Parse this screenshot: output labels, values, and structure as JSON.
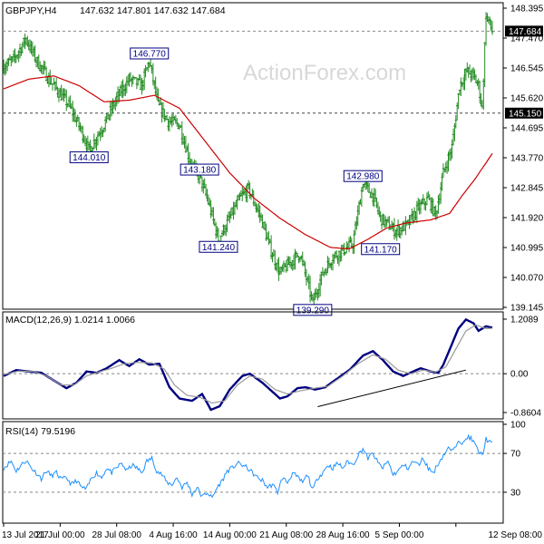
{
  "header": {
    "symbol": "GBPJPY,H4",
    "ohlc": "147.632 147.801 147.632 147.684"
  },
  "watermark": "ActionForex.com",
  "colors": {
    "candle": "#228b22",
    "ma": "#cc0000",
    "macd_main": "#000080",
    "macd_signal": "#9a9a9a",
    "rsi": "#1e90ff",
    "label_border": "#000080",
    "label_text": "#000080",
    "current_price_bg": "#000000",
    "current_price_fg": "#ffffff"
  },
  "chart_data": [
    {
      "type": "candlestick",
      "title": "GBPJPY,H4",
      "ylim": [
        139.145,
        148.395
      ],
      "y_ticks": [
        "148.395",
        "147.470",
        "146.545",
        "145.620",
        "144.695",
        "143.770",
        "142.845",
        "141.920",
        "140.995",
        "140.070",
        "139.145"
      ],
      "current_price": "147.684",
      "horizontal_line": "145.150",
      "x_tick_labels": [
        "13 Jul 2017",
        "21 Jul 00:00",
        "28 Jul 08:00",
        "4 Aug 16:00",
        "14 Aug 00:00",
        "21 Aug 08:00",
        "28 Aug 16:00",
        "5 Sep 00:00",
        "12 Sep 08:00"
      ],
      "x_tick_index": [
        0,
        45,
        90,
        135,
        180,
        225,
        270,
        315,
        360
      ],
      "n_bars": 390,
      "price_anchors": [
        [
          0,
          146.6
        ],
        [
          8,
          146.8
        ],
        [
          18,
          147.45
        ],
        [
          26,
          146.8
        ],
        [
          38,
          146.1
        ],
        [
          52,
          145.4
        ],
        [
          62,
          144.6
        ],
        [
          68,
          144.01
        ],
        [
          80,
          144.8
        ],
        [
          90,
          145.6
        ],
        [
          100,
          146.2
        ],
        [
          110,
          146.0
        ],
        [
          116,
          146.77
        ],
        [
          123,
          145.4
        ],
        [
          131,
          144.9
        ],
        [
          140,
          144.8
        ],
        [
          149,
          143.6
        ],
        [
          156,
          143.18
        ],
        [
          163,
          142.4
        ],
        [
          171,
          141.24
        ],
        [
          180,
          141.9
        ],
        [
          188,
          142.5
        ],
        [
          195,
          142.8
        ],
        [
          205,
          141.9
        ],
        [
          212,
          141.0
        ],
        [
          220,
          140.2
        ],
        [
          230,
          140.6
        ],
        [
          236,
          140.8
        ],
        [
          246,
          139.29
        ],
        [
          254,
          140.2
        ],
        [
          262,
          140.7
        ],
        [
          270,
          140.9
        ],
        [
          278,
          141.1
        ],
        [
          286,
          142.98
        ],
        [
          294,
          142.6
        ],
        [
          300,
          141.9
        ],
        [
          312,
          141.5
        ],
        [
          322,
          141.7
        ],
        [
          330,
          142.2
        ],
        [
          338,
          142.5
        ],
        [
          344,
          142.0
        ],
        [
          350,
          143.3
        ],
        [
          357,
          144.1
        ],
        [
          363,
          146.0
        ],
        [
          369,
          146.45
        ],
        [
          374,
          146.3
        ],
        [
          378,
          146.0
        ],
        [
          381,
          145.3
        ],
        [
          384,
          148.2
        ],
        [
          389,
          147.684
        ]
      ],
      "ma_anchors": [
        [
          0,
          145.9
        ],
        [
          20,
          146.2
        ],
        [
          40,
          146.3
        ],
        [
          60,
          146.0
        ],
        [
          80,
          145.5
        ],
        [
          100,
          145.55
        ],
        [
          120,
          145.7
        ],
        [
          140,
          145.3
        ],
        [
          160,
          144.3
        ],
        [
          180,
          143.3
        ],
        [
          200,
          142.5
        ],
        [
          220,
          141.9
        ],
        [
          240,
          141.4
        ],
        [
          260,
          141.0
        ],
        [
          275,
          140.95
        ],
        [
          290,
          141.25
        ],
        [
          305,
          141.6
        ],
        [
          320,
          141.75
        ],
        [
          340,
          141.85
        ],
        [
          355,
          142.05
        ],
        [
          365,
          142.6
        ],
        [
          375,
          143.1
        ],
        [
          389,
          143.9
        ]
      ],
      "labels": [
        {
          "text": "146.770",
          "index": 116,
          "price": 146.77,
          "place": "above"
        },
        {
          "text": "144.010",
          "index": 68,
          "price": 144.01,
          "place": "below"
        },
        {
          "text": "143.180",
          "index": 156,
          "price": 143.18,
          "place": "above"
        },
        {
          "text": "141.240",
          "index": 171,
          "price": 141.24,
          "place": "below"
        },
        {
          "text": "139.290",
          "index": 246,
          "price": 139.29,
          "place": "below"
        },
        {
          "text": "142.980",
          "index": 286,
          "price": 142.98,
          "place": "above"
        },
        {
          "text": "141.170",
          "index": 300,
          "price": 141.17,
          "place": "below"
        }
      ]
    },
    {
      "type": "line",
      "title": "MACD(12,26,9) 1.0214 1.0066",
      "ylim": [
        -0.8604,
        1.2089
      ],
      "y_ticks": [
        "1.2089",
        "0.00",
        "-0.8604"
      ],
      "zero_line": 0,
      "series": [
        {
          "name": "main",
          "anchors": [
            [
              0,
              -0.05
            ],
            [
              10,
              0.08
            ],
            [
              20,
              0.05
            ],
            [
              30,
              0.02
            ],
            [
              40,
              -0.15
            ],
            [
              50,
              -0.32
            ],
            [
              58,
              -0.2
            ],
            [
              66,
              0.05
            ],
            [
              74,
              0.02
            ],
            [
              82,
              0.12
            ],
            [
              92,
              0.3
            ],
            [
              100,
              0.17
            ],
            [
              108,
              0.32
            ],
            [
              116,
              0.2
            ],
            [
              124,
              0.22
            ],
            [
              132,
              -0.3
            ],
            [
              140,
              -0.55
            ],
            [
              150,
              -0.6
            ],
            [
              158,
              -0.45
            ],
            [
              165,
              -0.8
            ],
            [
              172,
              -0.72
            ],
            [
              180,
              -0.35
            ],
            [
              190,
              -0.05
            ],
            [
              196,
              0.0
            ],
            [
              206,
              -0.2
            ],
            [
              212,
              -0.35
            ],
            [
              220,
              -0.55
            ],
            [
              226,
              -0.5
            ],
            [
              234,
              -0.32
            ],
            [
              240,
              -0.3
            ],
            [
              248,
              -0.35
            ],
            [
              256,
              -0.3
            ],
            [
              266,
              -0.1
            ],
            [
              276,
              0.1
            ],
            [
              286,
              0.4
            ],
            [
              294,
              0.5
            ],
            [
              302,
              0.3
            ],
            [
              310,
              0.05
            ],
            [
              318,
              -0.05
            ],
            [
              326,
              0.05
            ],
            [
              332,
              0.12
            ],
            [
              340,
              0.05
            ],
            [
              346,
              0.02
            ],
            [
              350,
              0.2
            ],
            [
              356,
              0.6
            ],
            [
              362,
              1.0
            ],
            [
              368,
              1.2
            ],
            [
              374,
              1.12
            ],
            [
              378,
              0.95
            ],
            [
              384,
              1.05
            ],
            [
              389,
              1.0214
            ]
          ]
        },
        {
          "name": "signal",
          "anchors": [
            [
              0,
              -0.02
            ],
            [
              12,
              0.06
            ],
            [
              24,
              0.05
            ],
            [
              34,
              -0.05
            ],
            [
              46,
              -0.25
            ],
            [
              56,
              -0.25
            ],
            [
              66,
              -0.05
            ],
            [
              76,
              0.04
            ],
            [
              86,
              0.12
            ],
            [
              96,
              0.22
            ],
            [
              106,
              0.25
            ],
            [
              118,
              0.24
            ],
            [
              128,
              0.1
            ],
            [
              136,
              -0.25
            ],
            [
              146,
              -0.48
            ],
            [
              156,
              -0.52
            ],
            [
              166,
              -0.65
            ],
            [
              176,
              -0.6
            ],
            [
              186,
              -0.25
            ],
            [
              196,
              -0.05
            ],
            [
              206,
              -0.12
            ],
            [
              216,
              -0.35
            ],
            [
              226,
              -0.45
            ],
            [
              236,
              -0.38
            ],
            [
              248,
              -0.32
            ],
            [
              258,
              -0.28
            ],
            [
              270,
              -0.05
            ],
            [
              282,
              0.22
            ],
            [
              294,
              0.42
            ],
            [
              304,
              0.32
            ],
            [
              314,
              0.08
            ],
            [
              324,
              0.0
            ],
            [
              334,
              0.08
            ],
            [
              344,
              0.04
            ],
            [
              352,
              0.15
            ],
            [
              360,
              0.55
            ],
            [
              368,
              0.95
            ],
            [
              376,
              1.08
            ],
            [
              384,
              1.0
            ],
            [
              389,
              1.0066
            ]
          ]
        }
      ],
      "trendline": [
        [
          250,
          -0.73
        ],
        [
          368,
          0.08
        ]
      ]
    },
    {
      "type": "line",
      "title": "RSI(14) 79.5196",
      "ylim": [
        0,
        100
      ],
      "y_ticks": [
        "100",
        "70",
        "30",
        "0"
      ],
      "levels": [
        70,
        30
      ],
      "anchors": [
        [
          0,
          55
        ],
        [
          6,
          62
        ],
        [
          10,
          52
        ],
        [
          14,
          58
        ],
        [
          18,
          63
        ],
        [
          22,
          55
        ],
        [
          26,
          50
        ],
        [
          30,
          44
        ],
        [
          34,
          52
        ],
        [
          38,
          47
        ],
        [
          42,
          50
        ],
        [
          46,
          43
        ],
        [
          50,
          45
        ],
        [
          54,
          38
        ],
        [
          58,
          42
        ],
        [
          62,
          35
        ],
        [
          66,
          33
        ],
        [
          70,
          45
        ],
        [
          74,
          50
        ],
        [
          78,
          45
        ],
        [
          82,
          55
        ],
        [
          86,
          50
        ],
        [
          90,
          55
        ],
        [
          94,
          60
        ],
        [
          98,
          52
        ],
        [
          102,
          58
        ],
        [
          106,
          55
        ],
        [
          110,
          50
        ],
        [
          114,
          62
        ],
        [
          118,
          65
        ],
        [
          122,
          52
        ],
        [
          126,
          48
        ],
        [
          130,
          40
        ],
        [
          134,
          38
        ],
        [
          138,
          45
        ],
        [
          142,
          35
        ],
        [
          146,
          40
        ],
        [
          150,
          28
        ],
        [
          154,
          35
        ],
        [
          158,
          25
        ],
        [
          162,
          30
        ],
        [
          166,
          24
        ],
        [
          170,
          35
        ],
        [
          174,
          42
        ],
        [
          178,
          52
        ],
        [
          182,
          55
        ],
        [
          186,
          60
        ],
        [
          190,
          58
        ],
        [
          194,
          55
        ],
        [
          198,
          50
        ],
        [
          202,
          45
        ],
        [
          206,
          42
        ],
        [
          210,
          35
        ],
        [
          214,
          38
        ],
        [
          218,
          30
        ],
        [
          222,
          45
        ],
        [
          226,
          40
        ],
        [
          230,
          50
        ],
        [
          234,
          45
        ],
        [
          238,
          40
        ],
        [
          242,
          48
        ],
        [
          246,
          32
        ],
        [
          250,
          45
        ],
        [
          254,
          50
        ],
        [
          258,
          58
        ],
        [
          262,
          55
        ],
        [
          266,
          60
        ],
        [
          270,
          55
        ],
        [
          274,
          62
        ],
        [
          278,
          58
        ],
        [
          282,
          68
        ],
        [
          286,
          75
        ],
        [
          290,
          65
        ],
        [
          294,
          70
        ],
        [
          298,
          60
        ],
        [
          302,
          55
        ],
        [
          306,
          62
        ],
        [
          310,
          48
        ],
        [
          314,
          52
        ],
        [
          318,
          58
        ],
        [
          322,
          55
        ],
        [
          326,
          62
        ],
        [
          330,
          58
        ],
        [
          334,
          65
        ],
        [
          338,
          55
        ],
        [
          342,
          50
        ],
        [
          346,
          60
        ],
        [
          350,
          68
        ],
        [
          354,
          75
        ],
        [
          358,
          72
        ],
        [
          362,
          85
        ],
        [
          366,
          80
        ],
        [
          370,
          88
        ],
        [
          374,
          82
        ],
        [
          378,
          72
        ],
        [
          381,
          68
        ],
        [
          384,
          85
        ],
        [
          389,
          79.5
        ]
      ]
    }
  ]
}
